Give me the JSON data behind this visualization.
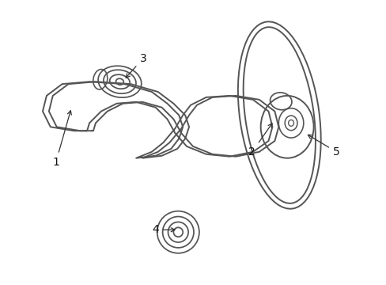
{
  "background_color": "#ffffff",
  "line_color": "#555555",
  "line_width": 1.4,
  "label_fontsize": 10,
  "arrow_color": "#333333",
  "fig_width": 4.89,
  "fig_height": 3.6,
  "dpi": 100
}
